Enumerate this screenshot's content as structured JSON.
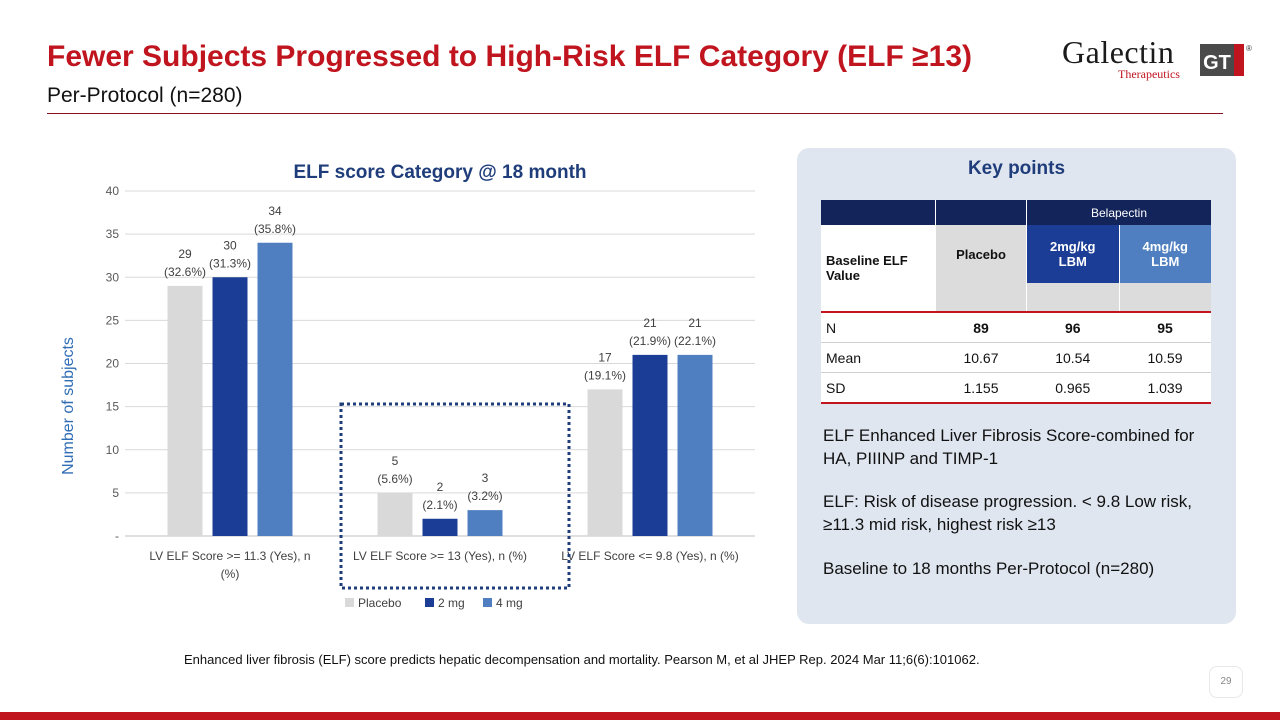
{
  "slide": {
    "title": "Fewer Subjects Progressed to High-Risk ELF Category (ELF ≥13)",
    "subtitle": "Per-Protocol (n=280)",
    "page_number": "29",
    "footnote": "Enhanced liver fibrosis (ELF) score predicts hepatic decompensation and mortality. Pearson M, et al JHEP Rep. 2024 Mar 11;6(6):101062."
  },
  "logo": {
    "word": "Galectin",
    "sub": "Therapeutics",
    "mark": "GT",
    "reg": "®"
  },
  "chart_data": {
    "type": "bar",
    "title": "ELF score Category @ 18 month",
    "ylabel": "Number of subjects",
    "xlabel": "",
    "ylim": [
      0,
      40
    ],
    "yticks": [
      0,
      5,
      10,
      15,
      20,
      25,
      30,
      35,
      40
    ],
    "ytick_labels": [
      "-",
      "5",
      "10",
      "15",
      "20",
      "25",
      "30",
      "35",
      "40"
    ],
    "categories": [
      "LV ELF Score >= 11.3 (Yes), n (%)",
      "LV ELF Score >= 13 (Yes), n (%)",
      "LV ELF Score <= 9.8 (Yes), n (%)"
    ],
    "series": [
      {
        "name": "Placebo",
        "color": "#d9d9d9",
        "values": [
          29,
          5,
          17
        ],
        "labels": [
          "(32.6%)",
          "(5.6%)",
          "(19.1%)"
        ]
      },
      {
        "name": "2 mg",
        "color": "#1c3d96",
        "values": [
          30,
          2,
          21
        ],
        "labels": [
          "(31.3%)",
          "(2.1%)",
          "(21.9%)"
        ]
      },
      {
        "name": "4 mg",
        "color": "#4f7fc0",
        "values": [
          34,
          3,
          21
        ],
        "labels": [
          "(35.8%)",
          "(3.2%)",
          "(22.1%)"
        ]
      }
    ],
    "grid": true,
    "legend_position": "bottom",
    "highlight_category": "LV ELF Score >= 13 (Yes), n (%)"
  },
  "key_points": {
    "title": "Key points",
    "table": {
      "group_header": "Belapectin",
      "row_header": "Baseline ELF Value",
      "columns": [
        "Placebo",
        "2mg/kg LBM",
        "4mg/kg LBM"
      ],
      "rows": [
        {
          "label": "N",
          "values": [
            "89",
            "96",
            "95"
          ],
          "bold": true
        },
        {
          "label": "Mean",
          "values": [
            "10.67",
            "10.54",
            "10.59"
          ],
          "bold": false
        },
        {
          "label": "SD",
          "values": [
            "1.155",
            "0.965",
            "1.039"
          ],
          "bold": false
        }
      ]
    },
    "text1": "ELF Enhanced Liver Fibrosis Score-combined for HA, PIIINP and TIMP-1",
    "text2": "ELF: Risk of disease progression. < 9.8 Low risk,  ≥11.3 mid risk, highest risk ≥13",
    "text3": "Baseline to 18 months  Per-Protocol (n=280)"
  }
}
